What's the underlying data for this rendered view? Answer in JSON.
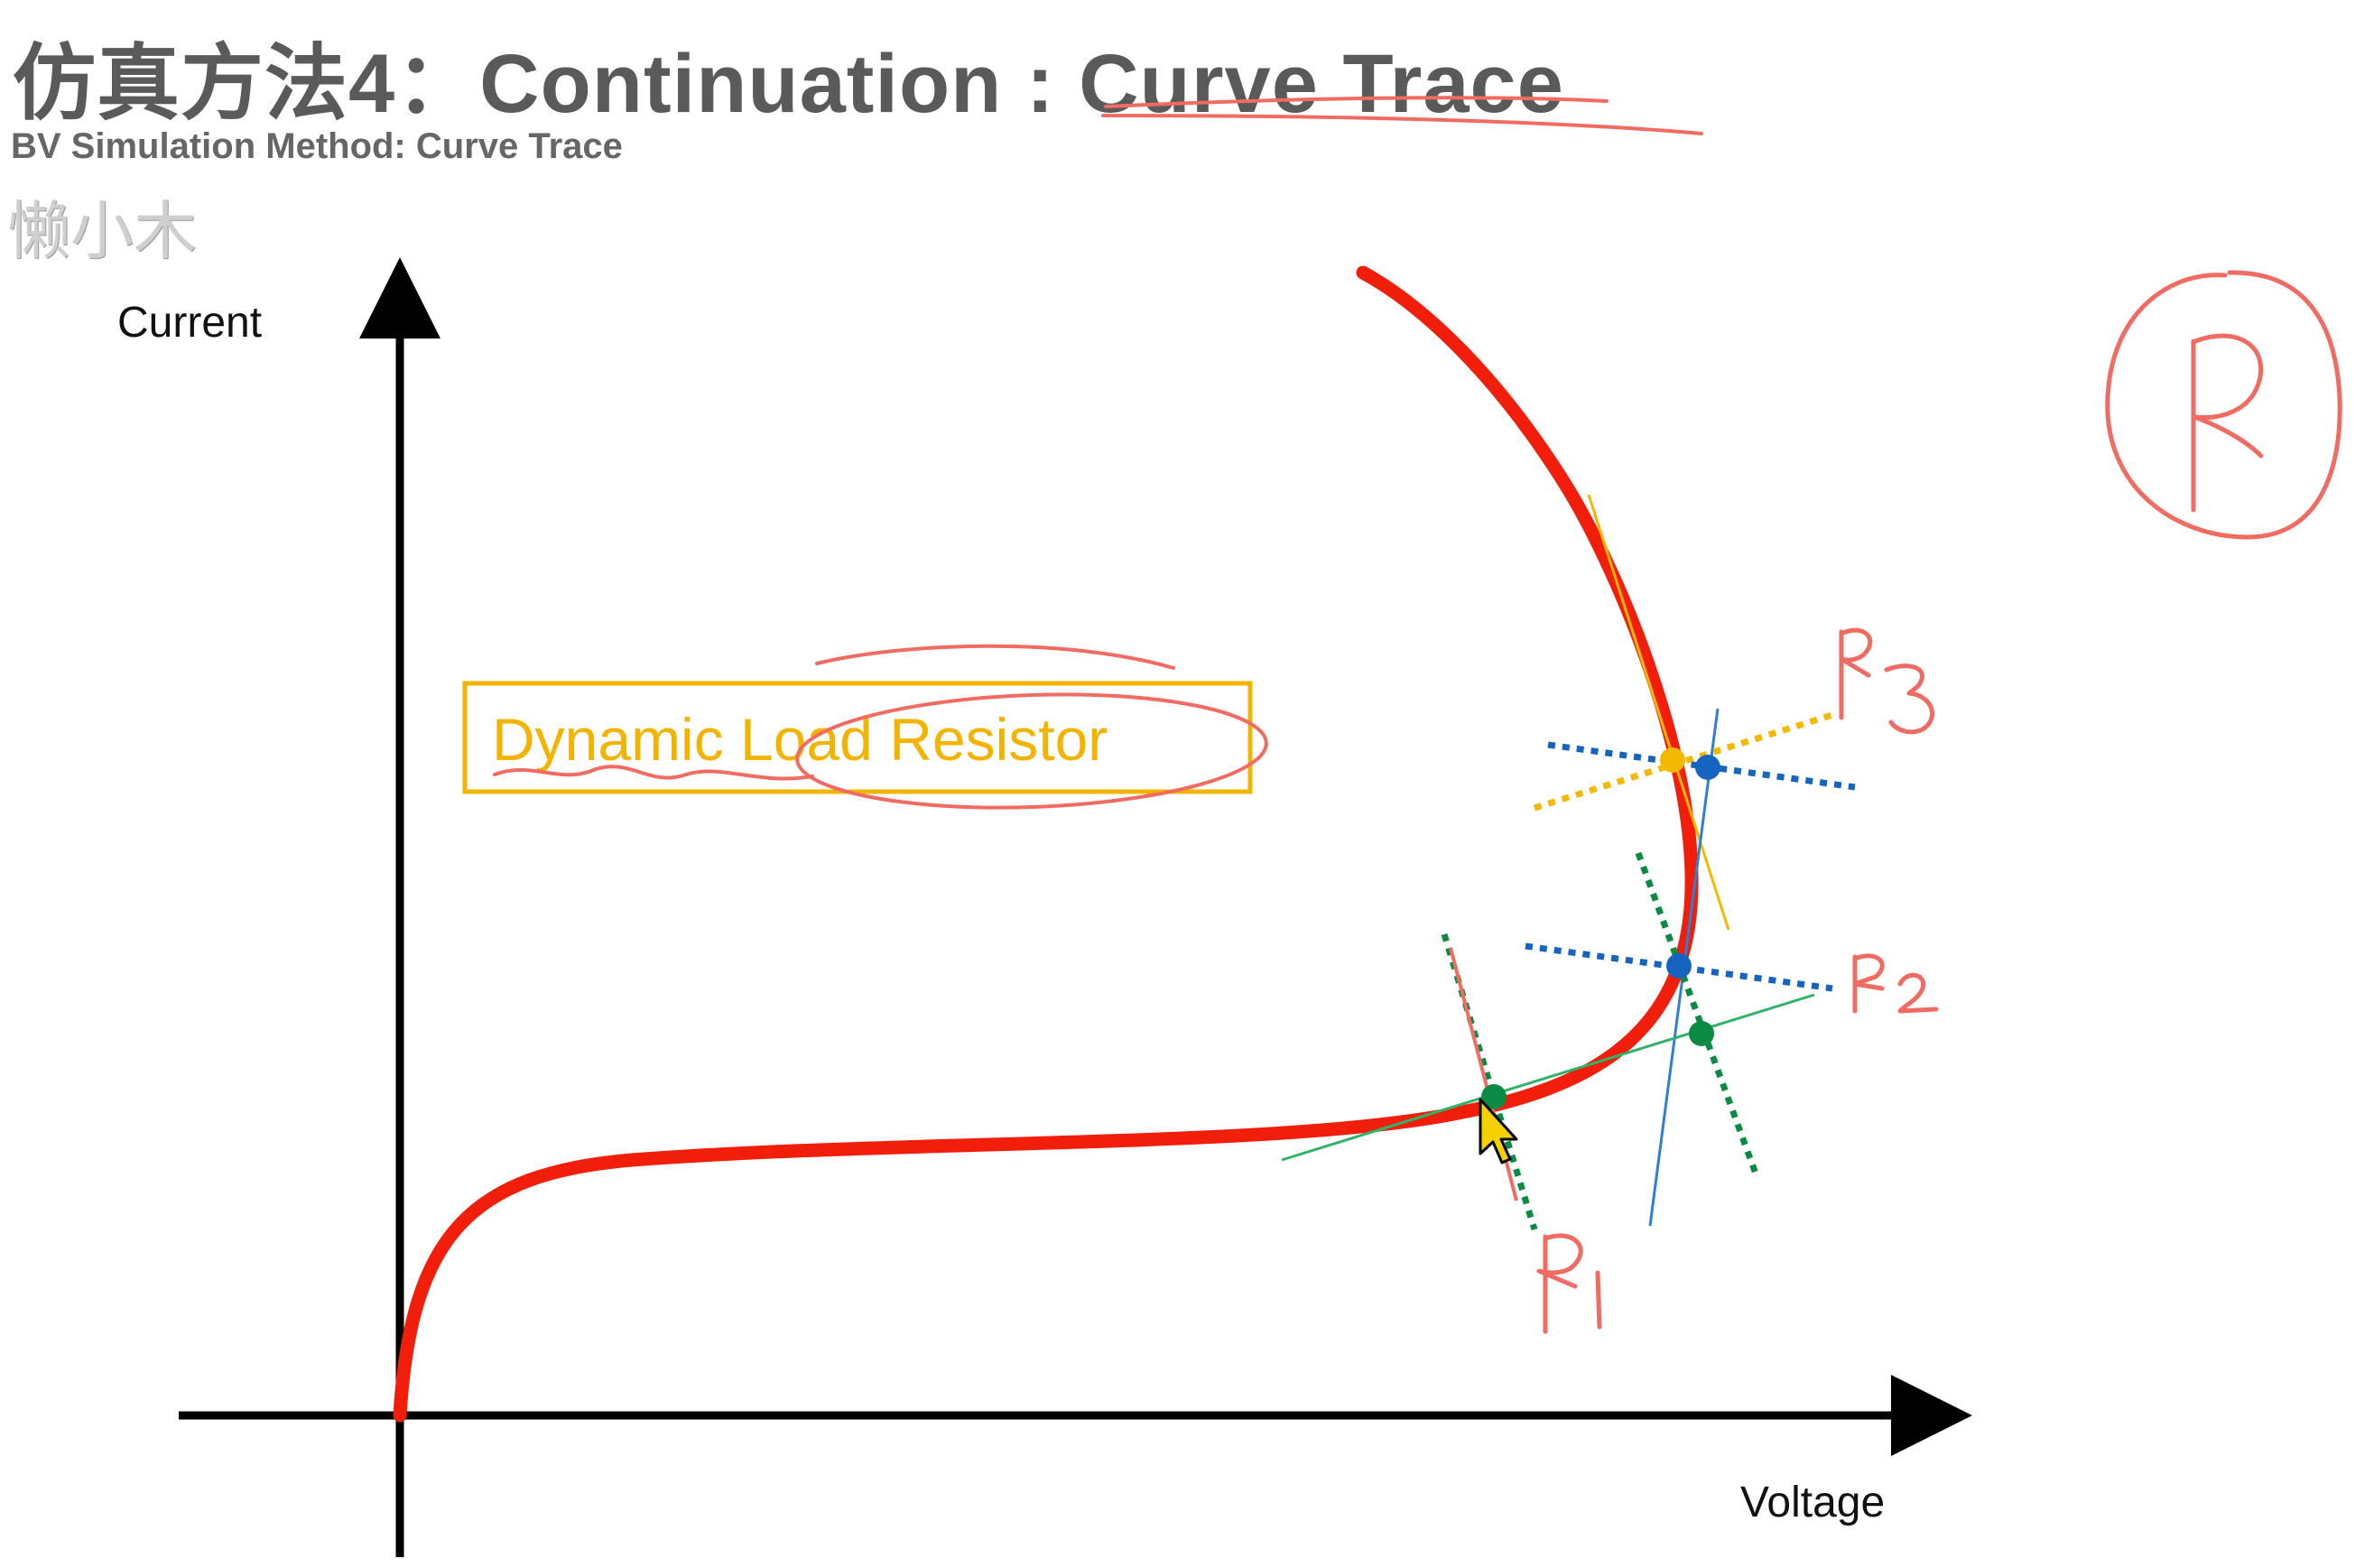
{
  "slide": {
    "title": "仿真方法4：Continuation : Curve Trace",
    "subtitle": "BV Simulation Method: Curve Trace",
    "watermark": "懒小木"
  },
  "diagram": {
    "y_axis_label": "Current",
    "x_axis_label": "Voltage",
    "callout_label": "Dynamic Load Resistor"
  },
  "annotations": {
    "circled_letter": "R",
    "load_line_labels": [
      "R1",
      "R2",
      "R3"
    ]
  },
  "colors": {
    "curve": "#f01e0a",
    "ink": "#f06b62",
    "callout_border": "#f2b400",
    "load_line_blue": "#1565c0",
    "load_line_green": "#0b8a44",
    "tangent_yellow": "#f5b800",
    "tangent_blue": "#2f7fd6",
    "tangent_green": "#2fb36a"
  },
  "icons": {
    "cursor": "mouse-pointer-icon"
  }
}
